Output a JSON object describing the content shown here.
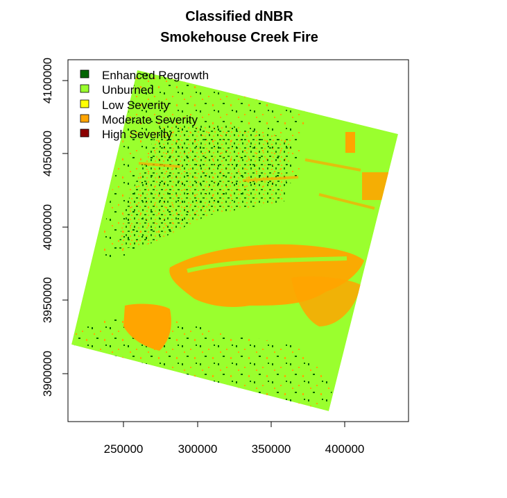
{
  "title_line1": "Classified dNBR",
  "title_line2": "Smokehouse Creek Fire",
  "legend": [
    {
      "label": "Enhanced Regrowth",
      "color": "#006400"
    },
    {
      "label": "Unburned",
      "color": "#9aff2e"
    },
    {
      "label": "Low Severity",
      "color": "#ffff00"
    },
    {
      "label": "Moderate Severity",
      "color": "#ffa500"
    },
    {
      "label": "High Severity",
      "color": "#8b0000"
    }
  ],
  "x_ticks": [
    "250000",
    "300000",
    "350000",
    "400000"
  ],
  "y_ticks": [
    "3900000",
    "3950000",
    "4000000",
    "4050000",
    "4100000"
  ],
  "chart_data": {
    "type": "heatmap",
    "title": "Classified dNBR\nSmokehouse Creek Fire",
    "x_range": [
      213000,
      443000
    ],
    "y_range": [
      3864000,
      4108000
    ],
    "x_ticks": [
      250000,
      300000,
      350000,
      400000
    ],
    "y_ticks": [
      3900000,
      3950000,
      4000000,
      4050000,
      4100000
    ],
    "classes": [
      "Enhanced Regrowth",
      "Unburned",
      "Low Severity",
      "Moderate Severity",
      "High Severity"
    ],
    "scene_corners": [
      [
        236000,
        4103000
      ],
      [
        436000,
        4063000
      ],
      [
        389000,
        3872000
      ],
      [
        215000,
        3919000
      ]
    ],
    "legend_position": "top-left"
  }
}
